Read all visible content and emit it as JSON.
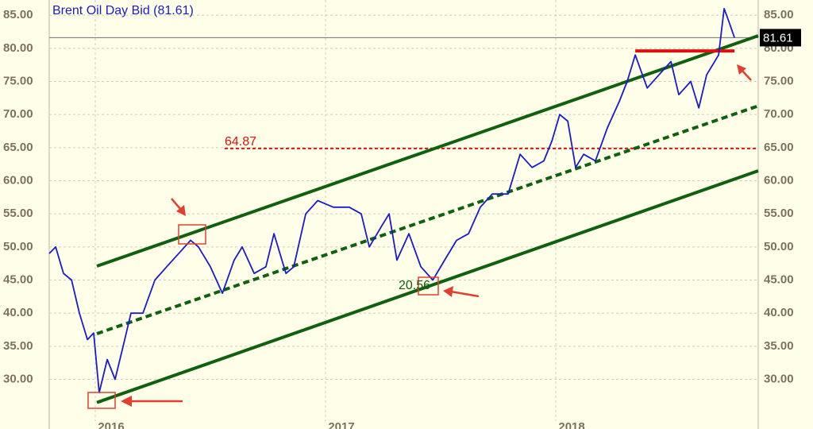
{
  "chart_data": {
    "type": "line",
    "title": "Brent Oil Day Bid (81.61)",
    "last_value": 81.61,
    "x": [
      2015.8,
      2015.828,
      2015.862,
      2015.897,
      2015.931,
      2015.966,
      2015.993,
      2016.017,
      2016.052,
      2016.086,
      2016.121,
      2016.155,
      2016.207,
      2016.259,
      2016.31,
      2016.362,
      2016.414,
      2016.448,
      2016.5,
      2016.552,
      2016.603,
      2016.638,
      2016.69,
      2016.741,
      2016.776,
      2016.828,
      2016.862,
      2016.914,
      2016.966,
      2017.034,
      2017.103,
      2017.155,
      2017.19,
      2017.241,
      2017.276,
      2017.31,
      2017.362,
      2017.414,
      2017.466,
      2017.517,
      2017.569,
      2017.621,
      2017.672,
      2017.724,
      2017.793,
      2017.845,
      2017.897,
      2017.948,
      2017.983,
      2018.017,
      2018.052,
      2018.086,
      2018.121,
      2018.172,
      2018.224,
      2018.276,
      2018.31,
      2018.345,
      2018.397,
      2018.448,
      2018.5,
      2018.534,
      2018.586,
      2018.621,
      2018.655,
      2018.707,
      2018.731,
      2018.752,
      2018.776
    ],
    "series": [
      {
        "color": "#1a1ad0",
        "values": [
          49,
          50,
          46,
          45,
          40,
          36,
          37,
          28,
          33,
          30,
          35,
          40,
          40,
          45,
          47,
          49,
          51,
          50,
          47,
          43,
          48,
          50,
          46,
          47,
          52,
          46,
          47,
          55,
          57,
          56,
          56,
          55,
          50,
          53,
          55,
          48,
          52,
          47,
          45,
          48,
          51,
          52,
          56,
          58,
          58,
          64,
          62,
          63,
          66,
          70,
          69,
          62,
          64,
          63,
          68,
          72,
          75,
          79,
          74,
          76,
          78,
          73,
          75,
          71,
          76,
          79,
          86,
          84,
          81.61
        ]
      }
    ],
    "trendlines": [
      {
        "color": "#106010",
        "style": "solid",
        "x": [
          2016.007,
          2018.879
        ],
        "y": [
          47.1,
          81.9
        ]
      },
      {
        "color": "#106010",
        "style": "dashed",
        "x": [
          2016.007,
          2018.879
        ],
        "y": [
          36.9,
          71.3
        ]
      },
      {
        "color": "#106010",
        "style": "solid",
        "x": [
          2016.007,
          2018.879
        ],
        "y": [
          26.5,
          61.5
        ]
      },
      {
        "color": "#e01010",
        "style": "solid",
        "x": [
          2018.345,
          2018.776
        ],
        "y": [
          79.6,
          79.6
        ]
      }
    ],
    "levels": [
      {
        "value": 64.87,
        "color": "#e01010",
        "x_start": 2016.562
      }
    ],
    "annotations": [
      {
        "text": "20.56",
        "color": "#106010"
      }
    ],
    "xlim": [
      2015.8,
      2018.879
    ],
    "ylim": [
      23.7,
      87.3
    ],
    "xticks": [
      2016,
      2017,
      2018
    ],
    "yticks": [
      {
        "value": 30,
        "label": "30.00"
      },
      {
        "value": 35,
        "label": "35.00"
      },
      {
        "value": 40,
        "label": "40.00"
      },
      {
        "value": 45,
        "label": "45.00"
      },
      {
        "value": 50,
        "label": "50.00"
      },
      {
        "value": 55,
        "label": "55.00"
      },
      {
        "value": 60,
        "label": "60.00"
      },
      {
        "value": 65,
        "label": "65.00"
      },
      {
        "value": 70,
        "label": "70.00"
      },
      {
        "value": 75,
        "label": "75.00"
      },
      {
        "value": 80,
        "label": "80.00"
      },
      {
        "value": 85,
        "label": "85.00"
      }
    ],
    "grid": true
  }
}
